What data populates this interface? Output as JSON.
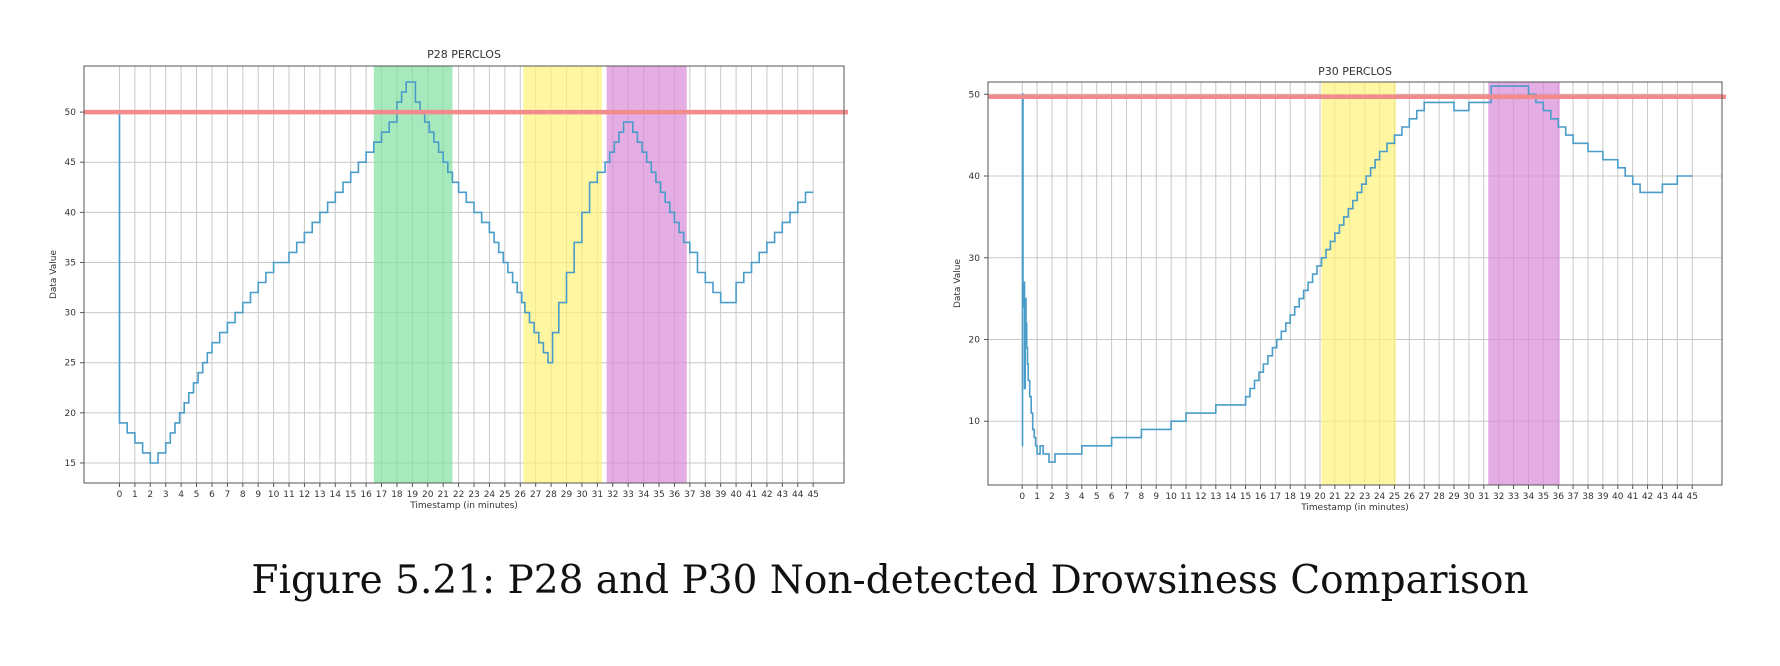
{
  "caption": "Figure 5.21: P28 and P30 Non-detected Drowsiness Comparison",
  "colors": {
    "line": "#4a9cc9",
    "threshold": "#f28b8b",
    "green": "#7fe0a0",
    "yellow": "#fff27a",
    "magenta": "#d98ad9",
    "grid": "#c8c8c8"
  },
  "chart_data": [
    {
      "type": "line",
      "title": "P28 PERCLOS",
      "xlabel": "Timestamp (in minutes)",
      "ylabel": "Data Value",
      "xlim": [
        -2.3,
        47
      ],
      "ylim": [
        13,
        54.6
      ],
      "xticks": [
        0,
        1,
        2,
        3,
        4,
        5,
        6,
        7,
        8,
        9,
        10,
        11,
        12,
        13,
        14,
        15,
        16,
        17,
        18,
        19,
        20,
        21,
        22,
        23,
        24,
        25,
        26,
        27,
        28,
        29,
        30,
        31,
        32,
        33,
        34,
        35,
        36,
        37,
        38,
        39,
        40,
        41,
        42,
        43,
        44,
        45
      ],
      "yticks": [
        15,
        20,
        25,
        30,
        35,
        40,
        45,
        50
      ],
      "grid": true,
      "threshold": 50,
      "bands": [
        {
          "x0": 16.5,
          "x1": 21.6,
          "color": "green"
        },
        {
          "x0": 26.2,
          "x1": 31.3,
          "color": "yellow"
        },
        {
          "x0": 31.6,
          "x1": 36.8,
          "color": "magenta"
        }
      ],
      "series": [
        {
          "x": [
            0,
            0,
            0.5,
            1,
            1.5,
            2,
            2.5,
            3,
            3.3,
            3.6,
            3.9,
            4.2,
            4.5,
            4.8,
            5.1,
            5.4,
            5.7,
            6,
            6.5,
            7,
            7.5,
            8,
            8.5,
            9,
            9.5,
            10,
            10.5,
            11,
            11.5,
            12,
            12.5,
            13,
            13.5,
            14,
            14.5,
            15,
            15.5,
            16,
            16.5,
            17,
            17.5,
            18,
            18.3,
            18.6,
            18.9,
            19.2,
            19.5,
            19.8,
            20.1,
            20.4,
            20.7,
            21,
            21.3,
            21.6,
            22,
            22.5,
            23,
            23.5,
            24,
            24.3,
            24.6,
            24.9,
            25.2,
            25.5,
            25.8,
            26.1,
            26.3,
            26.6,
            26.9,
            27.2,
            27.5,
            27.8,
            28.1,
            28.5,
            29,
            29.5,
            30,
            30.5,
            31,
            31.5,
            31.8,
            32.1,
            32.4,
            32.7,
            33,
            33.3,
            33.6,
            33.9,
            34.2,
            34.5,
            34.8,
            35.1,
            35.4,
            35.7,
            36,
            36.3,
            36.6,
            37,
            37.5,
            38,
            38.5,
            39,
            39.5,
            40,
            40.5,
            41,
            41.5,
            42,
            42.5,
            43,
            43.5,
            44,
            44.5,
            45
          ],
          "y": [
            50,
            19,
            18,
            17,
            16,
            15,
            16,
            17,
            18,
            19,
            20,
            21,
            22,
            23,
            24,
            25,
            26,
            27,
            28,
            29,
            30,
            31,
            32,
            33,
            34,
            35,
            35,
            36,
            37,
            38,
            39,
            40,
            41,
            42,
            43,
            44,
            45,
            46,
            47,
            48,
            49,
            51,
            52,
            53,
            53,
            51,
            50,
            49,
            48,
            47,
            46,
            45,
            44,
            43,
            42,
            41,
            40,
            39,
            38,
            37,
            36,
            35,
            34,
            33,
            32,
            31,
            30,
            29,
            28,
            27,
            26,
            25,
            28,
            31,
            34,
            37,
            40,
            43,
            44,
            45,
            46,
            47,
            48,
            49,
            49,
            48,
            47,
            46,
            45,
            44,
            43,
            42,
            41,
            40,
            39,
            38,
            37,
            36,
            34,
            33,
            32,
            31,
            31,
            33,
            34,
            35,
            36,
            37,
            38,
            39,
            40,
            41,
            42,
            42
          ]
        }
      ]
    },
    {
      "type": "line",
      "title": "P30 PERCLOS",
      "xlabel": "Timestamp (in minutes)",
      "ylabel": "Data Value",
      "xlim": [
        -2.3,
        47
      ],
      "ylim": [
        2.2,
        51.5
      ],
      "xticks": [
        0,
        1,
        2,
        3,
        4,
        5,
        6,
        7,
        8,
        9,
        10,
        11,
        12,
        13,
        14,
        15,
        16,
        17,
        18,
        19,
        20,
        21,
        22,
        23,
        24,
        25,
        26,
        27,
        28,
        29,
        30,
        31,
        32,
        33,
        34,
        35,
        36,
        37,
        38,
        39,
        40,
        41,
        42,
        43,
        44,
        45
      ],
      "yticks": [
        10,
        20,
        30,
        40,
        50
      ],
      "grid": true,
      "threshold": 49.7,
      "bands": [
        {
          "x0": 20.1,
          "x1": 25.1,
          "color": "yellow"
        },
        {
          "x0": 31.3,
          "x1": 36.1,
          "color": "magenta"
        }
      ],
      "series": [
        {
          "x": [
            0,
            0.02,
            0.05,
            0.1,
            0.15,
            0.2,
            0.25,
            0.3,
            0.35,
            0.4,
            0.5,
            0.6,
            0.7,
            0.8,
            0.9,
            1.0,
            1.2,
            1.4,
            1.6,
            1.8,
            2.0,
            2.2,
            2.5,
            3,
            4,
            5,
            6,
            7,
            8,
            9,
            10,
            11,
            12,
            13,
            14,
            15,
            15.3,
            15.6,
            15.9,
            16.2,
            16.5,
            16.8,
            17.1,
            17.4,
            17.7,
            18,
            18.3,
            18.6,
            18.9,
            19.2,
            19.5,
            19.8,
            20.1,
            20.4,
            20.7,
            21,
            21.3,
            21.6,
            21.9,
            22.2,
            22.5,
            22.8,
            23.1,
            23.4,
            23.7,
            24,
            24.5,
            25,
            25.5,
            26,
            26.5,
            27,
            29,
            29.5,
            30,
            31.5,
            32.5,
            33.5,
            34,
            34.5,
            35,
            35.5,
            36,
            36.5,
            37,
            38,
            39,
            39.5,
            40,
            40.5,
            41,
            41.5,
            42,
            42.5,
            43,
            44,
            45
          ],
          "y": [
            7,
            50,
            24,
            27,
            14,
            25,
            22,
            19,
            17,
            15,
            13,
            11,
            9,
            8,
            7,
            6,
            7,
            6,
            6,
            5,
            5,
            6,
            6,
            6,
            7,
            7,
            8,
            8,
            9,
            9,
            10,
            11,
            11,
            12,
            12,
            13,
            14,
            15,
            16,
            17,
            18,
            19,
            20,
            21,
            22,
            23,
            24,
            25,
            26,
            27,
            28,
            29,
            30,
            31,
            32,
            33,
            34,
            35,
            36,
            37,
            38,
            39,
            40,
            41,
            42,
            43,
            44,
            45,
            46,
            47,
            48,
            49,
            48,
            48,
            49,
            51,
            51,
            51,
            50,
            49,
            48,
            47,
            46,
            45,
            44,
            43,
            42,
            42,
            41,
            40,
            39,
            38,
            38,
            38,
            39,
            40,
            40
          ]
        }
      ]
    }
  ]
}
